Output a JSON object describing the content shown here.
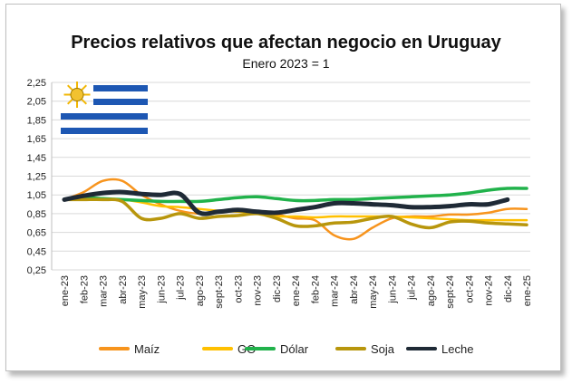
{
  "chart_data": {
    "type": "line",
    "title": "Precios relativos que afectan negocio en Uruguay",
    "subtitle": "Enero 2023 = 1",
    "ylim": [
      0.25,
      2.25
    ],
    "yticks": [
      "0,25",
      "0,45",
      "0,65",
      "0,85",
      "1,05",
      "1,25",
      "1,45",
      "1,65",
      "1,85",
      "2,05",
      "2,25"
    ],
    "categories": [
      "ene-23",
      "feb-23",
      "mar-23",
      "abr-23",
      "may-23",
      "jun-23",
      "jul-23",
      "ago-23",
      "sept-23",
      "oct-23",
      "nov-23",
      "dic-23",
      "ene-24",
      "feb-24",
      "mar-24",
      "abr-24",
      "may-24",
      "jun-24",
      "jul-24",
      "ago-24",
      "sept-24",
      "oct-24",
      "nov-24",
      "dic-24",
      "ene-25"
    ],
    "grid": true,
    "legend_position": "bottom",
    "series": [
      {
        "name": "Maíz",
        "color": "#f7941d",
        "width": 2.5,
        "values": [
          1.0,
          1.08,
          1.2,
          1.2,
          1.05,
          0.95,
          0.88,
          0.85,
          0.86,
          0.88,
          0.87,
          0.84,
          0.8,
          0.78,
          0.62,
          0.58,
          0.7,
          0.8,
          0.82,
          0.82,
          0.84,
          0.84,
          0.86,
          0.9,
          0.9
        ]
      },
      {
        "name": "GO",
        "color": "#ffc000",
        "width": 2.5,
        "values": [
          1.0,
          1.02,
          1.0,
          1.0,
          0.97,
          0.93,
          0.92,
          0.9,
          0.88,
          0.87,
          0.85,
          0.82,
          0.82,
          0.81,
          0.82,
          0.82,
          0.82,
          0.82,
          0.81,
          0.8,
          0.79,
          0.78,
          0.78,
          0.78,
          0.78
        ]
      },
      {
        "name": "Dólar",
        "color": "#21b24b",
        "width": 3.5,
        "values": [
          1.0,
          1.02,
          1.01,
          1.0,
          0.99,
          0.98,
          0.98,
          0.98,
          1.0,
          1.02,
          1.03,
          1.01,
          0.99,
          0.99,
          1.0,
          1.0,
          1.01,
          1.02,
          1.03,
          1.04,
          1.05,
          1.07,
          1.1,
          1.12,
          1.12
        ]
      },
      {
        "name": "Soja",
        "color": "#b8960c",
        "width": 3.5,
        "values": [
          1.0,
          1.0,
          1.0,
          0.98,
          0.8,
          0.8,
          0.85,
          0.8,
          0.82,
          0.83,
          0.85,
          0.8,
          0.72,
          0.72,
          0.75,
          0.76,
          0.8,
          0.82,
          0.74,
          0.7,
          0.76,
          0.77,
          0.75,
          0.74,
          0.73
        ]
      },
      {
        "name": "Leche",
        "color": "#1f2a36",
        "width": 5,
        "values": [
          1.0,
          1.04,
          1.07,
          1.08,
          1.06,
          1.05,
          1.06,
          0.86,
          0.87,
          0.89,
          0.87,
          0.86,
          0.89,
          0.92,
          0.96,
          0.96,
          0.95,
          0.94,
          0.92,
          0.92,
          0.93,
          0.95,
          0.95,
          1.0,
          null
        ]
      }
    ]
  }
}
